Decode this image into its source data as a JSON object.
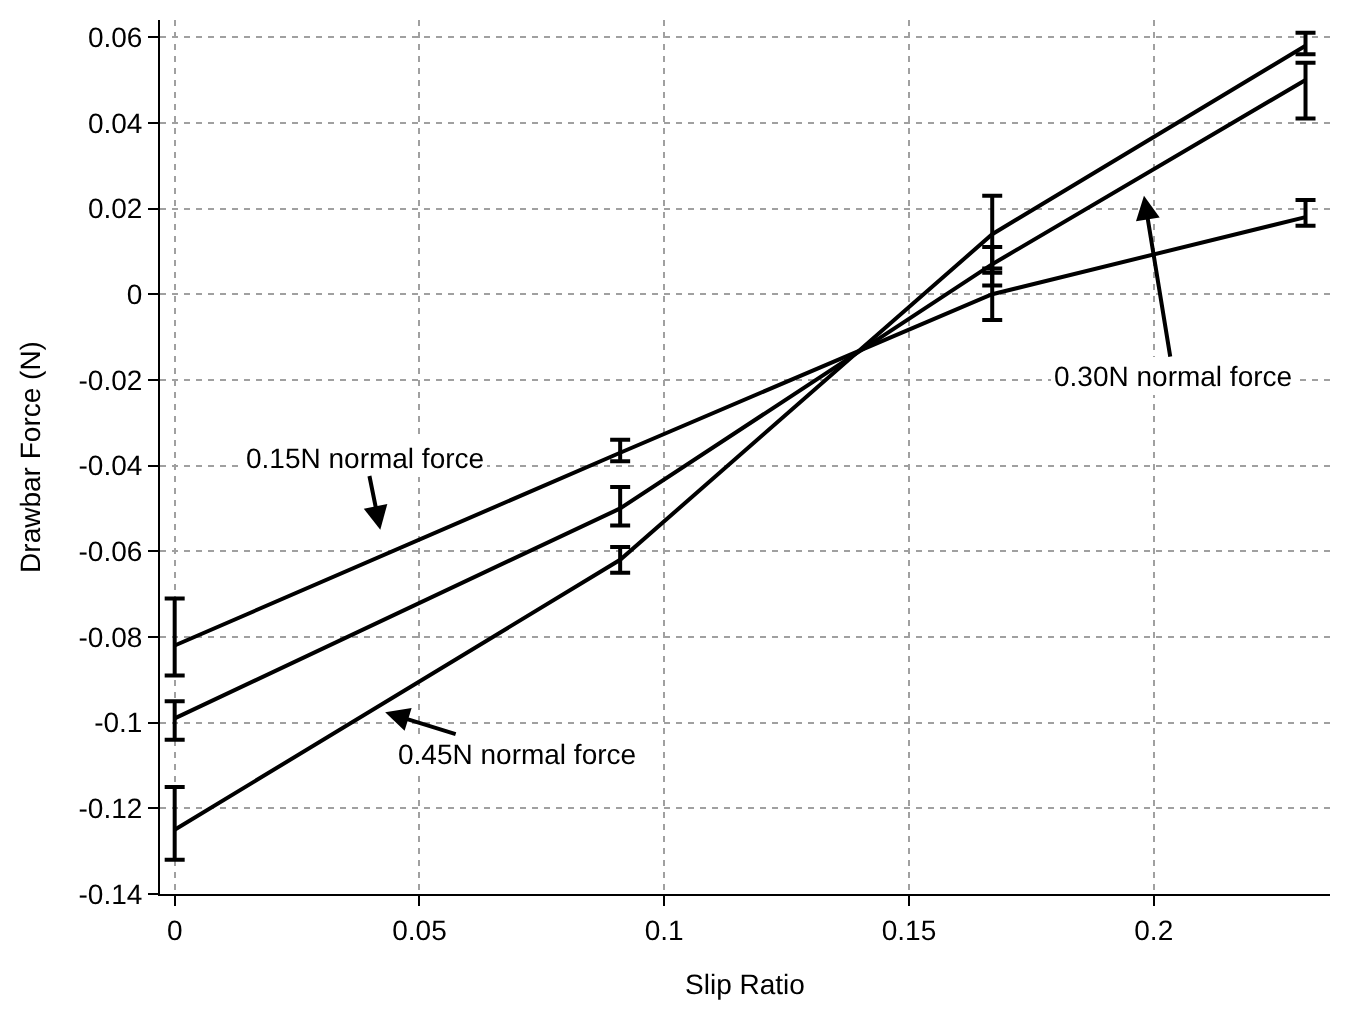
{
  "chart_data": {
    "type": "line",
    "xlabel": "Slip Ratio",
    "ylabel": "Drawbar Force (N)",
    "x": [
      0,
      0.091,
      0.167,
      0.231
    ],
    "series": [
      {
        "color": "#000000",
        "values": [
          -0.082,
          -0.037,
          0.0,
          0.018
        ],
        "errors": [
          [
            -0.089,
            -0.071
          ],
          [
            -0.039,
            -0.034
          ],
          [
            -0.006,
            0.006
          ],
          [
            0.016,
            0.022
          ]
        ]
      },
      {
        "color": "#000000",
        "values": [
          -0.099,
          -0.05,
          0.007,
          0.05
        ],
        "errors": [
          [
            -0.104,
            -0.095
          ],
          [
            -0.054,
            -0.045
          ],
          [
            0.002,
            0.011
          ],
          [
            0.041,
            0.054
          ]
        ]
      },
      {
        "color": "#000000",
        "values": [
          -0.125,
          -0.062,
          0.014,
          0.058
        ],
        "errors": [
          [
            -0.132,
            -0.115
          ],
          [
            -0.065,
            -0.059
          ],
          [
            0.005,
            0.023
          ],
          [
            0.056,
            0.061
          ]
        ]
      }
    ],
    "annotations": [
      "0.15N normal force",
      "0.30N normal force",
      {
        "text": "0.45N normal force",
        "x": 0.043,
        "y": -0.0976
      }
    ],
    "xlim": [
      -0.003,
      0.236
    ],
    "ylim": [
      -0.14,
      0.064
    ],
    "xticks": [
      0,
      0.05,
      0.1,
      0.15,
      0.2
    ],
    "yticks": [
      0.06,
      0.04,
      0.02,
      0,
      -0.02,
      -0.04,
      -0.06,
      -0.08,
      -0.1,
      -0.12,
      -0.14
    ],
    "grid": true,
    "line_style": "solid",
    "legend": false
  }
}
